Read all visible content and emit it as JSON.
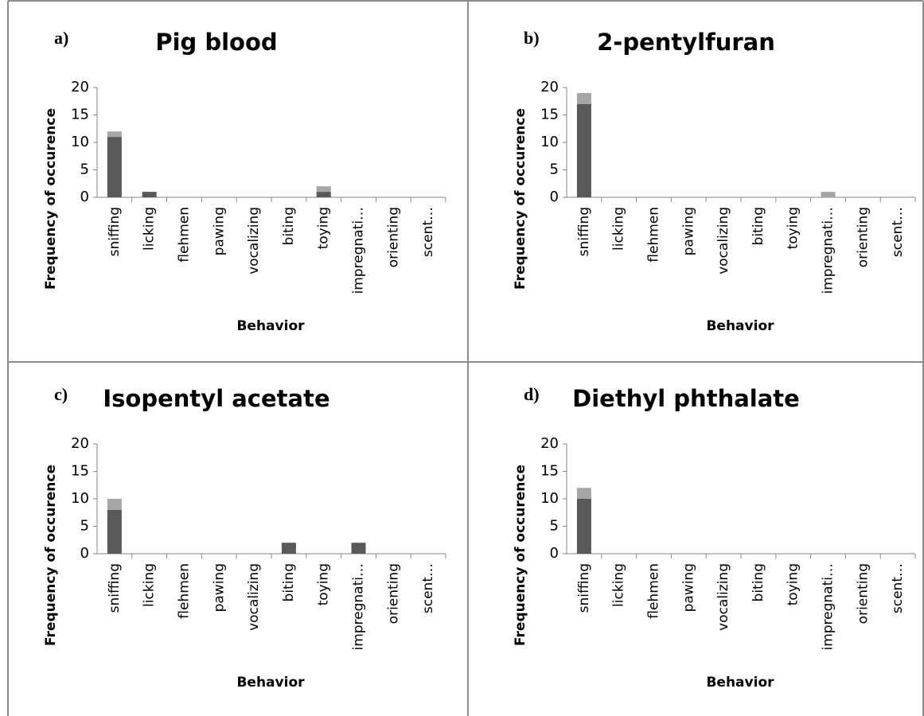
{
  "chart_data": [
    {
      "type": "bar",
      "stacked": true,
      "label": "a)",
      "title": "Pig blood",
      "ylabel": "Frequency of occurence",
      "xlabel": "Behavior",
      "categories": [
        "sniffing",
        "licking",
        "flehmen",
        "pawing",
        "vocalizing",
        "biting",
        "toying",
        "impregnati…",
        "orienting",
        "scent…"
      ],
      "series": [
        {
          "color": "#595959",
          "values": [
            11,
            1,
            0,
            0,
            0,
            0,
            1,
            0,
            0,
            0
          ]
        },
        {
          "color": "#a6a6a6",
          "values": [
            1,
            0,
            0,
            0,
            0,
            0,
            1,
            0,
            0,
            0
          ]
        }
      ],
      "ylim": [
        0,
        20
      ],
      "yticks": [
        0,
        5,
        10,
        15,
        20
      ]
    },
    {
      "type": "bar",
      "stacked": true,
      "label": "b)",
      "title": "2-pentylfuran",
      "ylabel": "Frequency of occurence",
      "xlabel": "Behavior",
      "categories": [
        "sniffing",
        "licking",
        "flehmen",
        "pawing",
        "vocalizing",
        "biting",
        "toying",
        "impregnati…",
        "orienting",
        "scent…"
      ],
      "series": [
        {
          "color": "#595959",
          "values": [
            17,
            0,
            0,
            0,
            0,
            0,
            0,
            0,
            0,
            0
          ]
        },
        {
          "color": "#a6a6a6",
          "values": [
            2,
            0,
            0,
            0,
            0,
            0,
            0,
            1,
            0,
            0
          ]
        }
      ],
      "ylim": [
        0,
        20
      ],
      "yticks": [
        0,
        5,
        10,
        15,
        20
      ]
    },
    {
      "type": "bar",
      "stacked": true,
      "label": "c)",
      "title": "Isopentyl acetate",
      "ylabel": "Frequency of occurence",
      "xlabel": "Behavior",
      "categories": [
        "sniffing",
        "licking",
        "flehmen",
        "pawing",
        "vocalizing",
        "biting",
        "toying",
        "impregnati…",
        "orienting",
        "scent…"
      ],
      "series": [
        {
          "color": "#595959",
          "values": [
            8,
            0,
            0,
            0,
            0,
            2,
            0,
            2,
            0,
            0
          ]
        },
        {
          "color": "#a6a6a6",
          "values": [
            2,
            0,
            0,
            0,
            0,
            0,
            0,
            0,
            0,
            0
          ]
        }
      ],
      "ylim": [
        0,
        20
      ],
      "yticks": [
        0,
        5,
        10,
        15,
        20
      ]
    },
    {
      "type": "bar",
      "stacked": true,
      "label": "d)",
      "title": "Diethyl phthalate",
      "ylabel": "Frequency of occurence",
      "xlabel": "Behavior",
      "categories": [
        "sniffing",
        "licking",
        "flehmen",
        "pawing",
        "vocalizing",
        "biting",
        "toying",
        "impregnati…",
        "orienting",
        "scent…"
      ],
      "series": [
        {
          "color": "#595959",
          "values": [
            10,
            0,
            0,
            0,
            0,
            0,
            0,
            0,
            0,
            0
          ]
        },
        {
          "color": "#a6a6a6",
          "values": [
            2,
            0,
            0,
            0,
            0,
            0,
            0,
            0,
            0,
            0
          ]
        }
      ],
      "ylim": [
        0,
        20
      ],
      "yticks": [
        0,
        5,
        10,
        15,
        20
      ]
    }
  ]
}
